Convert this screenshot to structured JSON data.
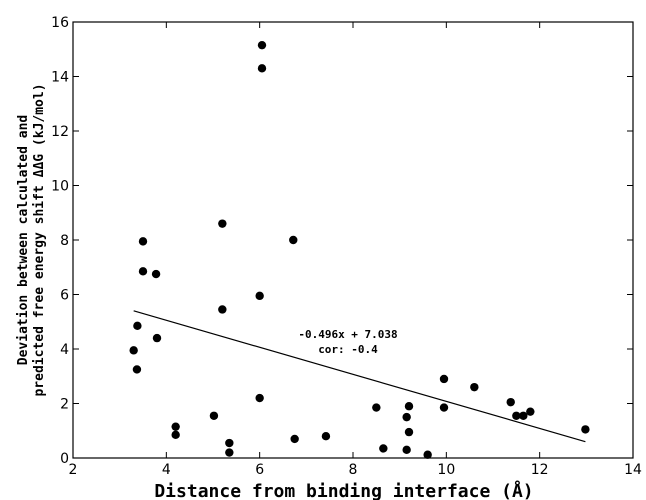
{
  "chart_data": {
    "type": "scatter",
    "xlabel": "Distance from binding interface (Å)",
    "ylabel_line1": "Deviation between calculated and",
    "ylabel_line2": "predicted free energy shift ΔΔG (kJ/mol)",
    "xlim": [
      2,
      14
    ],
    "ylim": [
      0,
      16
    ],
    "xticks": [
      2,
      4,
      6,
      8,
      10,
      12,
      14
    ],
    "yticks": [
      0,
      2,
      4,
      6,
      8,
      10,
      12,
      14,
      16
    ],
    "grid": false,
    "points": [
      [
        3.3,
        3.95
      ],
      [
        3.37,
        3.25
      ],
      [
        3.38,
        4.85
      ],
      [
        3.5,
        6.85
      ],
      [
        3.5,
        7.95
      ],
      [
        3.78,
        6.75
      ],
      [
        3.8,
        4.4
      ],
      [
        4.2,
        1.15
      ],
      [
        4.2,
        0.85
      ],
      [
        5.02,
        1.55
      ],
      [
        5.2,
        8.6
      ],
      [
        5.2,
        5.45
      ],
      [
        5.35,
        0.55
      ],
      [
        5.35,
        0.2
      ],
      [
        6.0,
        5.95
      ],
      [
        6.0,
        2.2
      ],
      [
        6.05,
        15.15
      ],
      [
        6.05,
        14.3
      ],
      [
        6.72,
        8.0
      ],
      [
        6.75,
        0.7
      ],
      [
        7.42,
        0.8
      ],
      [
        8.5,
        1.85
      ],
      [
        8.65,
        0.35
      ],
      [
        9.15,
        1.5
      ],
      [
        9.15,
        0.3
      ],
      [
        9.2,
        1.9
      ],
      [
        9.2,
        0.95
      ],
      [
        9.6,
        0.12
      ],
      [
        9.95,
        2.9
      ],
      [
        9.95,
        1.85
      ],
      [
        10.6,
        2.6
      ],
      [
        11.38,
        2.05
      ],
      [
        11.5,
        1.55
      ],
      [
        11.65,
        1.55
      ],
      [
        11.8,
        1.7
      ],
      [
        12.98,
        1.05
      ]
    ],
    "fit_line": {
      "slope": -0.496,
      "intercept": 7.038,
      "x_range": [
        3.3,
        12.98
      ]
    },
    "annotation_line1": "-0.496x + 7.038",
    "annotation_line2": "cor: -0.4"
  }
}
